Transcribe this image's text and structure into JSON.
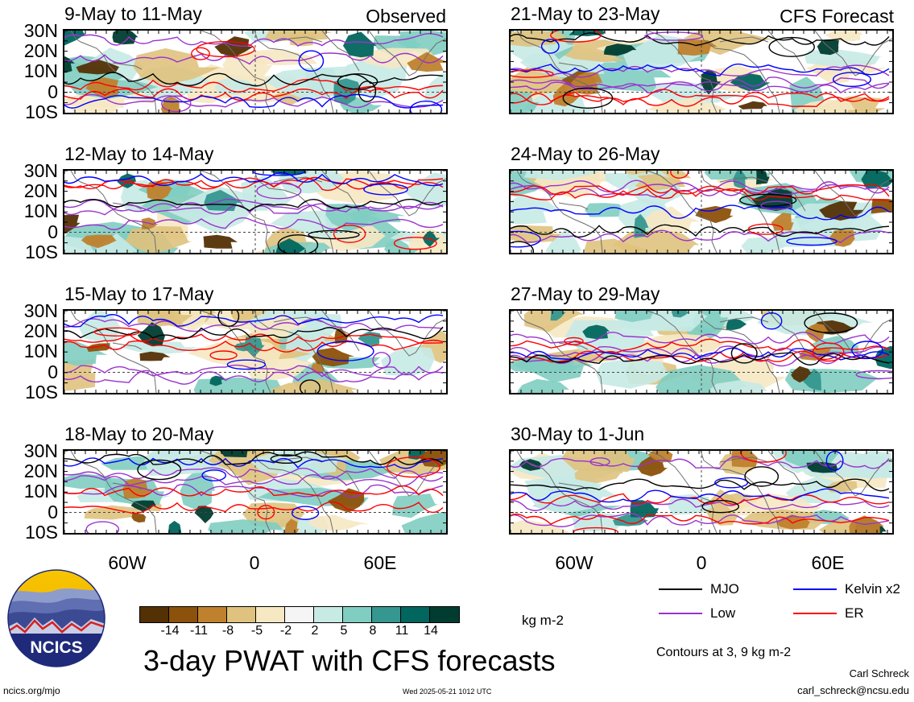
{
  "panels": [
    {
      "id": "p1",
      "date": "9-May to 11-May",
      "tag": "Observed"
    },
    {
      "id": "p2",
      "date": "21-May to 23-May",
      "tag": "CFS Forecast"
    },
    {
      "id": "p3",
      "date": "12-May to 14-May",
      "tag": ""
    },
    {
      "id": "p4",
      "date": "24-May to 26-May",
      "tag": ""
    },
    {
      "id": "p5",
      "date": "15-May to 17-May",
      "tag": ""
    },
    {
      "id": "p6",
      "date": "27-May to 29-May",
      "tag": ""
    },
    {
      "id": "p7",
      "date": "18-May to 20-May",
      "tag": ""
    },
    {
      "id": "p8",
      "date": "30-May to 1-Jun",
      "tag": ""
    }
  ],
  "lat_labels": [
    "30N",
    "20N",
    "10N",
    "0",
    "10S"
  ],
  "lon_labels": [
    "60W",
    "0",
    "60E"
  ],
  "colorbar": {
    "colors": [
      "#543005",
      "#8c510a",
      "#bf812d",
      "#dfc27d",
      "#f6e8c3",
      "#f5f5f5",
      "#c7eae5",
      "#80cdc1",
      "#35978f",
      "#01665e",
      "#003c30"
    ],
    "ticks": [
      "-14",
      "-11",
      "-8",
      "-5",
      "-2",
      "2",
      "5",
      "8",
      "11",
      "14"
    ],
    "unit": "kg m-2"
  },
  "title": "3-day PWAT with CFS forecasts",
  "legend": [
    {
      "label": "MJO",
      "color": "#000000"
    },
    {
      "label": "Kelvin x2",
      "color": "#0000ff"
    },
    {
      "label": "Low",
      "color": "#9a32cd"
    },
    {
      "label": "ER",
      "color": "#ff0000"
    }
  ],
  "contours_note": "Contours at 3, 9 kg m-2",
  "author_name": "Carl Schreck",
  "author_email": "carl_schreck@ncsu.edu",
  "url": "ncics.org/mjo",
  "timestamp": "Wed 2025-05-21 1012 UTC",
  "logo_text": "NCICS"
}
